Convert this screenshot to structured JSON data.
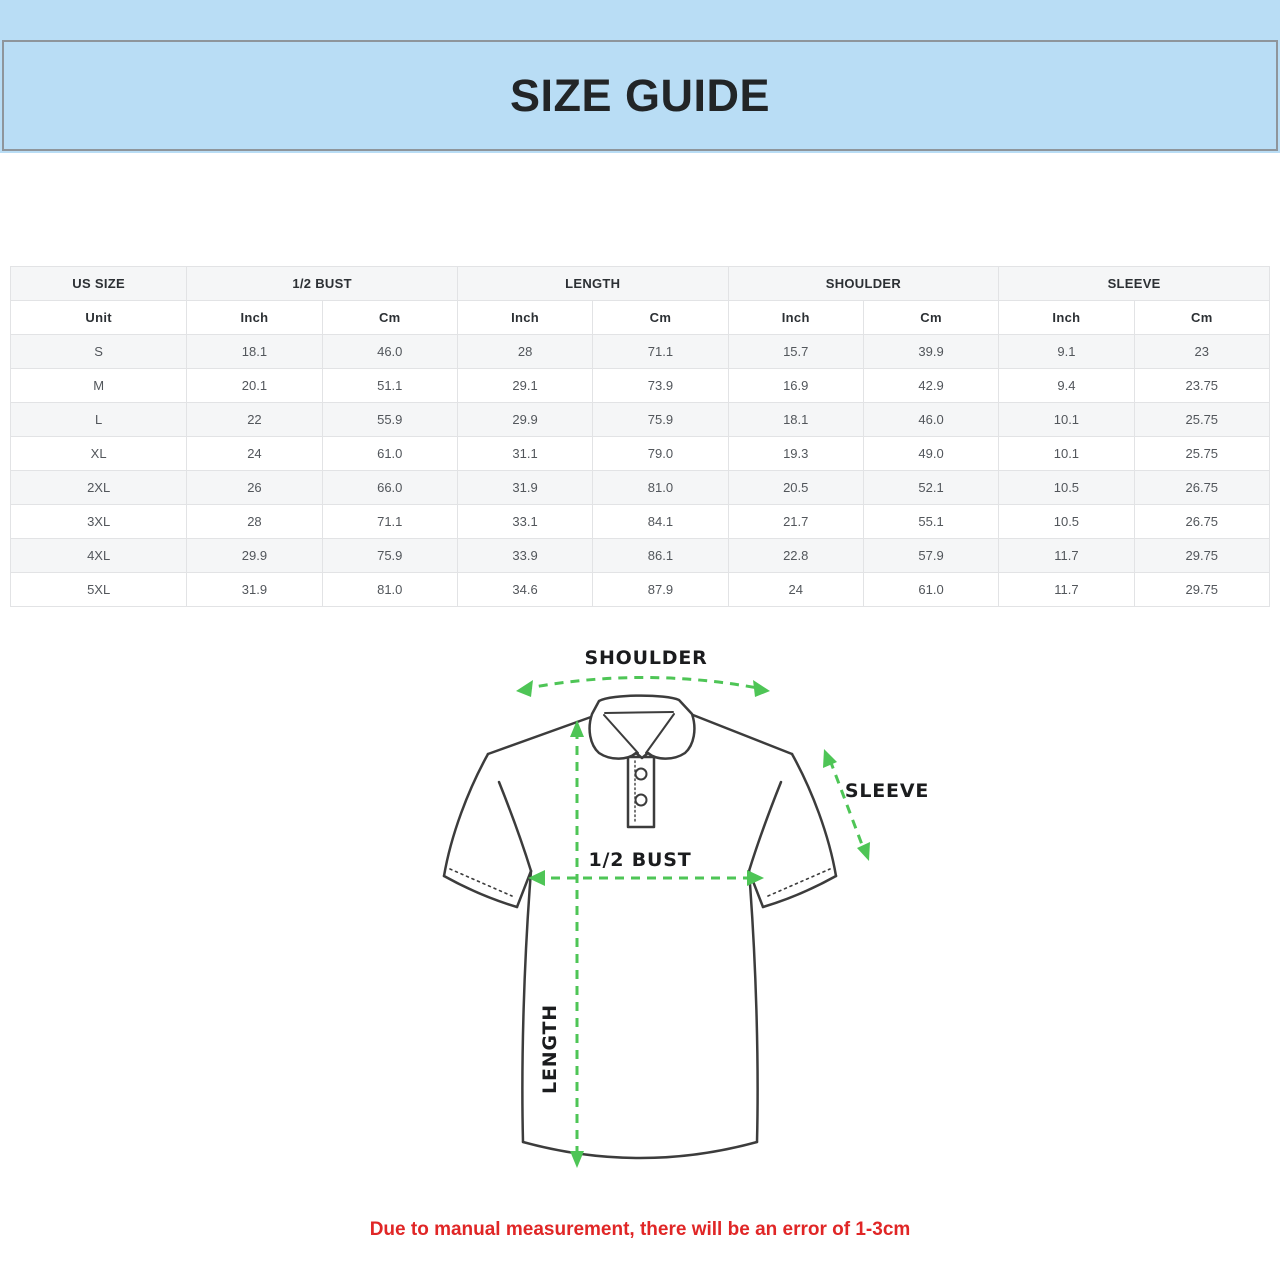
{
  "banner": {
    "title": "SIZE GUIDE",
    "bg_color": "#b9ddf5",
    "border_color": "#8e959b"
  },
  "table": {
    "groups": [
      {
        "label": "US SIZE",
        "span": 1
      },
      {
        "label": "1/2 BUST",
        "span": 2
      },
      {
        "label": "LENGTH",
        "span": 2
      },
      {
        "label": "SHOULDER",
        "span": 2
      },
      {
        "label": "SLEEVE",
        "span": 2
      }
    ],
    "unit_row": [
      "Unit",
      "Inch",
      "Cm",
      "Inch",
      "Cm",
      "Inch",
      "Cm",
      "Inch",
      "Cm"
    ],
    "rows": [
      {
        "size": "S",
        "values": [
          "18.1",
          "46.0",
          "28",
          "71.1",
          "15.7",
          "39.9",
          "9.1",
          "23"
        ]
      },
      {
        "size": "M",
        "values": [
          "20.1",
          "51.1",
          "29.1",
          "73.9",
          "16.9",
          "42.9",
          "9.4",
          "23.75"
        ]
      },
      {
        "size": "L",
        "values": [
          "22",
          "55.9",
          "29.9",
          "75.9",
          "18.1",
          "46.0",
          "10.1",
          "25.75"
        ]
      },
      {
        "size": "XL",
        "values": [
          "24",
          "61.0",
          "31.1",
          "79.0",
          "19.3",
          "49.0",
          "10.1",
          "25.75"
        ]
      },
      {
        "size": "2XL",
        "values": [
          "26",
          "66.0",
          "31.9",
          "81.0",
          "20.5",
          "52.1",
          "10.5",
          "26.75"
        ]
      },
      {
        "size": "3XL",
        "values": [
          "28",
          "71.1",
          "33.1",
          "84.1",
          "21.7",
          "55.1",
          "10.5",
          "26.75"
        ]
      },
      {
        "size": "4XL",
        "values": [
          "29.9",
          "75.9",
          "33.9",
          "86.1",
          "22.8",
          "57.9",
          "11.7",
          "29.75"
        ]
      },
      {
        "size": "5XL",
        "values": [
          "31.9",
          "81.0",
          "34.6",
          "87.9",
          "24",
          "61.0",
          "11.7",
          "29.75"
        ]
      }
    ]
  },
  "diagram": {
    "labels": {
      "shoulder": "SHOULDER",
      "sleeve": "SLEEVE",
      "bust": "1/2 BUST",
      "length": "LENGTH"
    },
    "arrow_color": "#4ec556",
    "outline_color": "#3c3c3c"
  },
  "note": {
    "text": "Due to manual measurement, there will be an error of 1-3cm",
    "color": "#e02626"
  }
}
